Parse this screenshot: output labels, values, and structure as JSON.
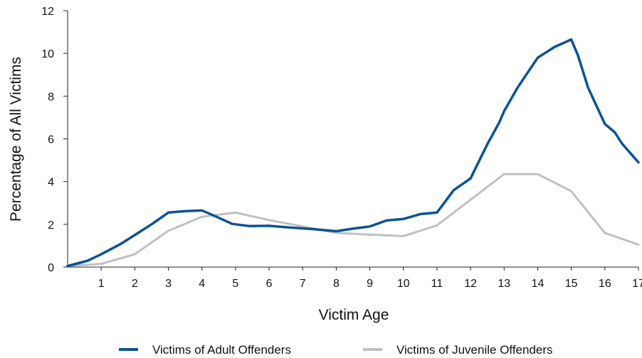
{
  "chart_data": {
    "type": "line",
    "xlabel": "Victim Age",
    "ylabel": "Percentage of All Victims",
    "xlim": [
      0,
      17
    ],
    "ylim": [
      0,
      12
    ],
    "x_ticks": [
      "1",
      "2",
      "3",
      "4",
      "5",
      "6",
      "7",
      "8",
      "9",
      "10",
      "11",
      "12",
      "13",
      "14",
      "15",
      "16",
      "17"
    ],
    "y_ticks": [
      "0",
      "2",
      "4",
      "6",
      "8",
      "10",
      "12"
    ],
    "grid": false,
    "legend_position": "bottom",
    "series": [
      {
        "name": "Victims of Adult Offenders",
        "color": "#0b5394",
        "points": [
          [
            0,
            0.05
          ],
          [
            0.6,
            0.3
          ],
          [
            1,
            0.6
          ],
          [
            1.6,
            1.1
          ],
          [
            2,
            1.5
          ],
          [
            2.5,
            2.0
          ],
          [
            3,
            2.55
          ],
          [
            3.5,
            2.62
          ],
          [
            4,
            2.65
          ],
          [
            4.3,
            2.45
          ],
          [
            4.9,
            2.02
          ],
          [
            5.4,
            1.92
          ],
          [
            6,
            1.93
          ],
          [
            6.6,
            1.85
          ],
          [
            7.3,
            1.78
          ],
          [
            8,
            1.68
          ],
          [
            8.5,
            1.8
          ],
          [
            9,
            1.9
          ],
          [
            9.5,
            2.18
          ],
          [
            10,
            2.25
          ],
          [
            10.5,
            2.48
          ],
          [
            11,
            2.55
          ],
          [
            11.5,
            3.6
          ],
          [
            12,
            4.15
          ],
          [
            12.5,
            5.75
          ],
          [
            12.85,
            6.75
          ],
          [
            13,
            7.3
          ],
          [
            13.4,
            8.4
          ],
          [
            14,
            9.8
          ],
          [
            14.5,
            10.3
          ],
          [
            15,
            10.65
          ],
          [
            15.2,
            9.9
          ],
          [
            15.5,
            8.4
          ],
          [
            16,
            6.7
          ],
          [
            16.3,
            6.3
          ],
          [
            16.5,
            5.8
          ],
          [
            17,
            4.9
          ]
        ]
      },
      {
        "name": "Victims of Juvenile Offenders",
        "color": "#c0c0c0",
        "points": [
          [
            0,
            0.05
          ],
          [
            1,
            0.15
          ],
          [
            2,
            0.6
          ],
          [
            3,
            1.7
          ],
          [
            4,
            2.35
          ],
          [
            5,
            2.55
          ],
          [
            6,
            2.2
          ],
          [
            7,
            1.9
          ],
          [
            8,
            1.6
          ],
          [
            9,
            1.52
          ],
          [
            10,
            1.45
          ],
          [
            11,
            1.95
          ],
          [
            12,
            3.15
          ],
          [
            13,
            4.35
          ],
          [
            14,
            4.35
          ],
          [
            15,
            3.55
          ],
          [
            16,
            1.6
          ],
          [
            17,
            1.05
          ]
        ]
      }
    ]
  }
}
